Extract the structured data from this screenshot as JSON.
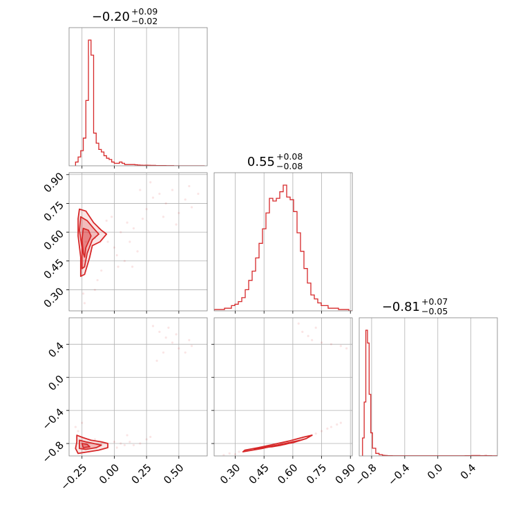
{
  "chart_data": {
    "type": "corner",
    "color": "#d62728",
    "grid": true,
    "panels": [
      {
        "id": "hist-p1",
        "type": "histogram",
        "title": {
          "value": "−0.20",
          "plus": "+0.09",
          "minus": "−0.02"
        },
        "xlim": [
          -0.35,
          0.72
        ],
        "xticks": [
          -0.25,
          0.0,
          0.25,
          0.5
        ],
        "bins": {
          "start": -0.3,
          "width": 0.02,
          "heights": [
            0.03,
            0.07,
            0.12,
            0.22,
            0.52,
            1.0,
            0.88,
            0.26,
            0.18,
            0.13,
            0.11,
            0.08,
            0.06,
            0.05,
            0.03,
            0.02,
            0.02,
            0.03,
            0.02,
            0.01,
            0.01,
            0.01,
            0.01,
            0.008,
            0.006,
            0.005,
            0.004,
            0.005,
            0.004,
            0.003,
            0.003,
            0.002,
            0.002,
            0.002,
            0.002,
            0.001,
            0.001,
            0.001,
            0,
            0,
            0,
            0,
            0,
            0,
            0,
            0,
            0,
            0,
            0,
            0
          ]
        }
      },
      {
        "id": "hist-p2",
        "type": "histogram",
        "title": {
          "value": "0.55",
          "plus": "+0.08",
          "minus": "−0.08"
        },
        "xlim": [
          0.19,
          0.91
        ],
        "xticks": [
          0.3,
          0.45,
          0.6,
          0.75,
          0.9
        ],
        "bins": {
          "start": 0.19,
          "width": 0.018,
          "heights": [
            0.01,
            0.01,
            0.01,
            0.02,
            0.02,
            0.04,
            0.05,
            0.07,
            0.1,
            0.16,
            0.23,
            0.3,
            0.4,
            0.51,
            0.62,
            0.74,
            0.85,
            0.83,
            0.85,
            0.9,
            0.95,
            0.86,
            0.84,
            0.75,
            0.59,
            0.45,
            0.32,
            0.21,
            0.12,
            0.09,
            0.06,
            0.04,
            0.04,
            0.02,
            0.02,
            0.02,
            0.01,
            0.01,
            0.01,
            0.0
          ]
        }
      },
      {
        "id": "hist-p3",
        "type": "histogram",
        "title": {
          "value": "−0.81",
          "plus": "+0.07",
          "minus": "−0.05"
        },
        "xlim": [
          -0.95,
          0.72
        ],
        "xticks": [
          -0.8,
          -0.4,
          0.0,
          0.4
        ],
        "bins": {
          "start": -0.91,
          "width": 0.02,
          "heights": [
            0.14,
            0.42,
            0.98,
            0.88,
            0.48,
            0.18,
            0.06,
            0.06,
            0.02,
            0.02,
            0.01,
            0.01,
            0.005,
            0.004,
            0.003,
            0.002,
            0.002,
            0.002,
            0.001,
            0.001,
            0.001,
            0.001,
            0.001,
            0.001,
            0.001,
            0.001,
            0.001,
            0.001,
            0.001,
            0.001,
            0.001,
            0.001,
            0.001,
            0.001,
            0.001,
            0.001,
            0.001,
            0.001,
            0.001,
            0.001,
            0.001,
            0.001,
            0.001,
            0.001,
            0.001,
            0.001,
            0.001,
            0.001,
            0.001,
            0.001,
            0.001,
            0.001,
            0.001,
            0.001,
            0.001,
            0.001,
            0.001,
            0.001,
            0.001,
            0.001,
            0.001,
            0.001,
            0.002,
            0.002,
            0.002,
            0.002,
            0.003,
            0.003,
            0.003,
            0.003,
            0.003,
            0.002,
            0.002,
            0.002,
            0.003,
            0.002,
            0.002,
            0.002,
            0.001,
            0.001,
            0.001,
            0.001,
            0.001
          ]
        }
      },
      {
        "id": "scatter-p1-p2",
        "type": "scatter_contour",
        "xlim": [
          -0.35,
          0.72
        ],
        "ylim": [
          0.19,
          0.91
        ],
        "xticks": [
          -0.25,
          0.0,
          0.25,
          0.5
        ],
        "yticks": [
          0.3,
          0.45,
          0.6,
          0.75,
          0.9
        ],
        "contours": [
          [
            [
              -0.27,
              0.72
            ],
            [
              -0.22,
              0.71
            ],
            [
              -0.16,
              0.65
            ],
            [
              -0.1,
              0.61
            ],
            [
              -0.06,
              0.59
            ],
            [
              -0.11,
              0.55
            ],
            [
              -0.17,
              0.53
            ],
            [
              -0.19,
              0.47
            ],
            [
              -0.23,
              0.38
            ],
            [
              -0.26,
              0.37
            ],
            [
              -0.26,
              0.47
            ],
            [
              -0.28,
              0.58
            ],
            [
              -0.28,
              0.67
            ]
          ],
          [
            [
              -0.26,
              0.68
            ],
            [
              -0.21,
              0.66
            ],
            [
              -0.16,
              0.62
            ],
            [
              -0.12,
              0.59
            ],
            [
              -0.17,
              0.56
            ],
            [
              -0.21,
              0.49
            ],
            [
              -0.23,
              0.42
            ],
            [
              -0.25,
              0.41
            ],
            [
              -0.25,
              0.52
            ],
            [
              -0.27,
              0.61
            ]
          ],
          [
            [
              -0.24,
              0.62
            ],
            [
              -0.2,
              0.61
            ],
            [
              -0.18,
              0.58
            ],
            [
              -0.22,
              0.52
            ],
            [
              -0.23,
              0.47
            ],
            [
              -0.24,
              0.49
            ],
            [
              -0.25,
              0.56
            ]
          ]
        ],
        "points": [
          [
            -0.22,
            0.55
          ],
          [
            -0.2,
            0.6
          ],
          [
            -0.18,
            0.5
          ],
          [
            -0.15,
            0.57
          ],
          [
            -0.25,
            0.42
          ],
          [
            -0.12,
            0.62
          ],
          [
            -0.08,
            0.6
          ],
          [
            -0.05,
            0.55
          ],
          [
            0.0,
            0.52
          ],
          [
            0.02,
            0.48
          ],
          [
            0.05,
            0.6
          ],
          [
            0.08,
            0.45
          ],
          [
            -0.1,
            0.4
          ],
          [
            -0.13,
            0.35
          ],
          [
            -0.24,
            0.28
          ],
          [
            -0.23,
            0.23
          ],
          [
            0.12,
            0.55
          ],
          [
            0.15,
            0.62
          ],
          [
            0.18,
            0.5
          ],
          [
            0.22,
            0.67
          ],
          [
            0.25,
            0.72
          ],
          [
            0.3,
            0.78
          ],
          [
            0.35,
            0.8
          ],
          [
            0.4,
            0.75
          ],
          [
            0.45,
            0.82
          ],
          [
            0.5,
            0.7
          ],
          [
            0.55,
            0.77
          ],
          [
            0.6,
            0.73
          ],
          [
            0.65,
            0.8
          ],
          [
            0.2,
            0.82
          ],
          [
            0.28,
            0.86
          ],
          [
            0.1,
            0.65
          ],
          [
            -0.02,
            0.68
          ],
          [
            -0.06,
            0.66
          ],
          [
            0.03,
            0.42
          ],
          [
            -0.15,
            0.3
          ],
          [
            0.14,
            0.42
          ],
          [
            0.38,
            0.68
          ],
          [
            0.48,
            0.64
          ],
          [
            0.58,
            0.84
          ]
        ]
      },
      {
        "id": "scatter-p1-p3",
        "type": "scatter_contour",
        "xlim": [
          -0.35,
          0.72
        ],
        "ylim": [
          -0.95,
          0.72
        ],
        "xticks": [
          -0.25,
          0.0,
          0.25,
          0.5
        ],
        "yticks": [
          -0.8,
          -0.4,
          0.0,
          0.4
        ],
        "contours": [
          [
            [
              -0.29,
              -0.7
            ],
            [
              -0.24,
              -0.73
            ],
            [
              -0.18,
              -0.76
            ],
            [
              -0.1,
              -0.78
            ],
            [
              -0.05,
              -0.8
            ],
            [
              -0.05,
              -0.85
            ],
            [
              -0.12,
              -0.88
            ],
            [
              -0.2,
              -0.9
            ],
            [
              -0.28,
              -0.92
            ],
            [
              -0.3,
              -0.86
            ],
            [
              -0.29,
              -0.78
            ]
          ],
          [
            [
              -0.27,
              -0.76
            ],
            [
              -0.22,
              -0.78
            ],
            [
              -0.16,
              -0.8
            ],
            [
              -0.1,
              -0.82
            ],
            [
              -0.14,
              -0.85
            ],
            [
              -0.22,
              -0.87
            ],
            [
              -0.27,
              -0.86
            ]
          ],
          [
            [
              -0.25,
              -0.8
            ],
            [
              -0.21,
              -0.81
            ],
            [
              -0.19,
              -0.84
            ],
            [
              -0.24,
              -0.85
            ]
          ]
        ],
        "points": [
          [
            -0.22,
            -0.8
          ],
          [
            -0.15,
            -0.75
          ],
          [
            -0.1,
            -0.8
          ],
          [
            0.0,
            -0.78
          ],
          [
            0.02,
            -0.85
          ],
          [
            0.05,
            -0.8
          ],
          [
            0.08,
            -0.82
          ],
          [
            0.12,
            -0.78
          ],
          [
            0.15,
            -0.82
          ],
          [
            0.2,
            -0.8
          ],
          [
            0.25,
            -0.75
          ],
          [
            -0.3,
            -0.6
          ],
          [
            -0.28,
            -0.65
          ],
          [
            -0.25,
            -0.55
          ],
          [
            0.3,
            0.62
          ],
          [
            0.35,
            0.55
          ],
          [
            0.4,
            0.48
          ],
          [
            0.45,
            0.42
          ],
          [
            0.5,
            0.35
          ],
          [
            0.55,
            0.3
          ],
          [
            0.6,
            0.38
          ],
          [
            0.38,
            0.3
          ],
          [
            0.42,
            0.6
          ],
          [
            0.48,
            0.52
          ],
          [
            0.58,
            0.45
          ],
          [
            0.33,
            0.2
          ],
          [
            0.28,
            -0.72
          ],
          [
            0.1,
            -0.7
          ]
        ]
      },
      {
        "id": "scatter-p2-p3",
        "type": "scatter_contour",
        "xlim": [
          0.19,
          0.91
        ],
        "ylim": [
          -0.95,
          0.72
        ],
        "xticks": [
          0.3,
          0.45,
          0.6,
          0.75,
          0.9
        ],
        "yticks": [
          -0.8,
          -0.4,
          0.0,
          0.4
        ],
        "contours": [
          [
            [
              0.34,
              -0.9
            ],
            [
              0.44,
              -0.86
            ],
            [
              0.52,
              -0.82
            ],
            [
              0.6,
              -0.79
            ],
            [
              0.67,
              -0.74
            ],
            [
              0.7,
              -0.7
            ],
            [
              0.66,
              -0.72
            ],
            [
              0.58,
              -0.77
            ],
            [
              0.5,
              -0.81
            ],
            [
              0.42,
              -0.85
            ],
            [
              0.35,
              -0.88
            ]
          ],
          [
            [
              0.4,
              -0.87
            ],
            [
              0.48,
              -0.84
            ],
            [
              0.56,
              -0.81
            ],
            [
              0.64,
              -0.76
            ],
            [
              0.6,
              -0.78
            ],
            [
              0.52,
              -0.82
            ],
            [
              0.44,
              -0.85
            ]
          ],
          [
            [
              0.47,
              -0.84
            ],
            [
              0.52,
              -0.82
            ],
            [
              0.57,
              -0.8
            ],
            [
              0.54,
              -0.82
            ],
            [
              0.49,
              -0.84
            ]
          ]
        ],
        "points": [
          [
            0.3,
            -0.93
          ],
          [
            0.32,
            -0.9
          ],
          [
            0.36,
            -0.89
          ],
          [
            0.4,
            -0.87
          ],
          [
            0.45,
            -0.85
          ],
          [
            0.5,
            -0.83
          ],
          [
            0.55,
            -0.81
          ],
          [
            0.6,
            -0.78
          ],
          [
            0.65,
            -0.75
          ],
          [
            0.7,
            -0.7
          ],
          [
            0.72,
            -0.68
          ],
          [
            0.75,
            -0.65
          ],
          [
            0.78,
            -0.62
          ],
          [
            0.8,
            -0.6
          ],
          [
            0.83,
            -0.57
          ],
          [
            0.85,
            -0.55
          ],
          [
            0.63,
            0.65
          ],
          [
            0.65,
            0.55
          ],
          [
            0.68,
            0.5
          ],
          [
            0.7,
            0.45
          ],
          [
            0.75,
            0.42
          ],
          [
            0.8,
            0.4
          ],
          [
            0.85,
            0.38
          ],
          [
            0.72,
            0.6
          ],
          [
            0.88,
            0.35
          ],
          [
            0.24,
            -0.94
          ],
          [
            0.27,
            -0.92
          ]
        ]
      }
    ]
  }
}
